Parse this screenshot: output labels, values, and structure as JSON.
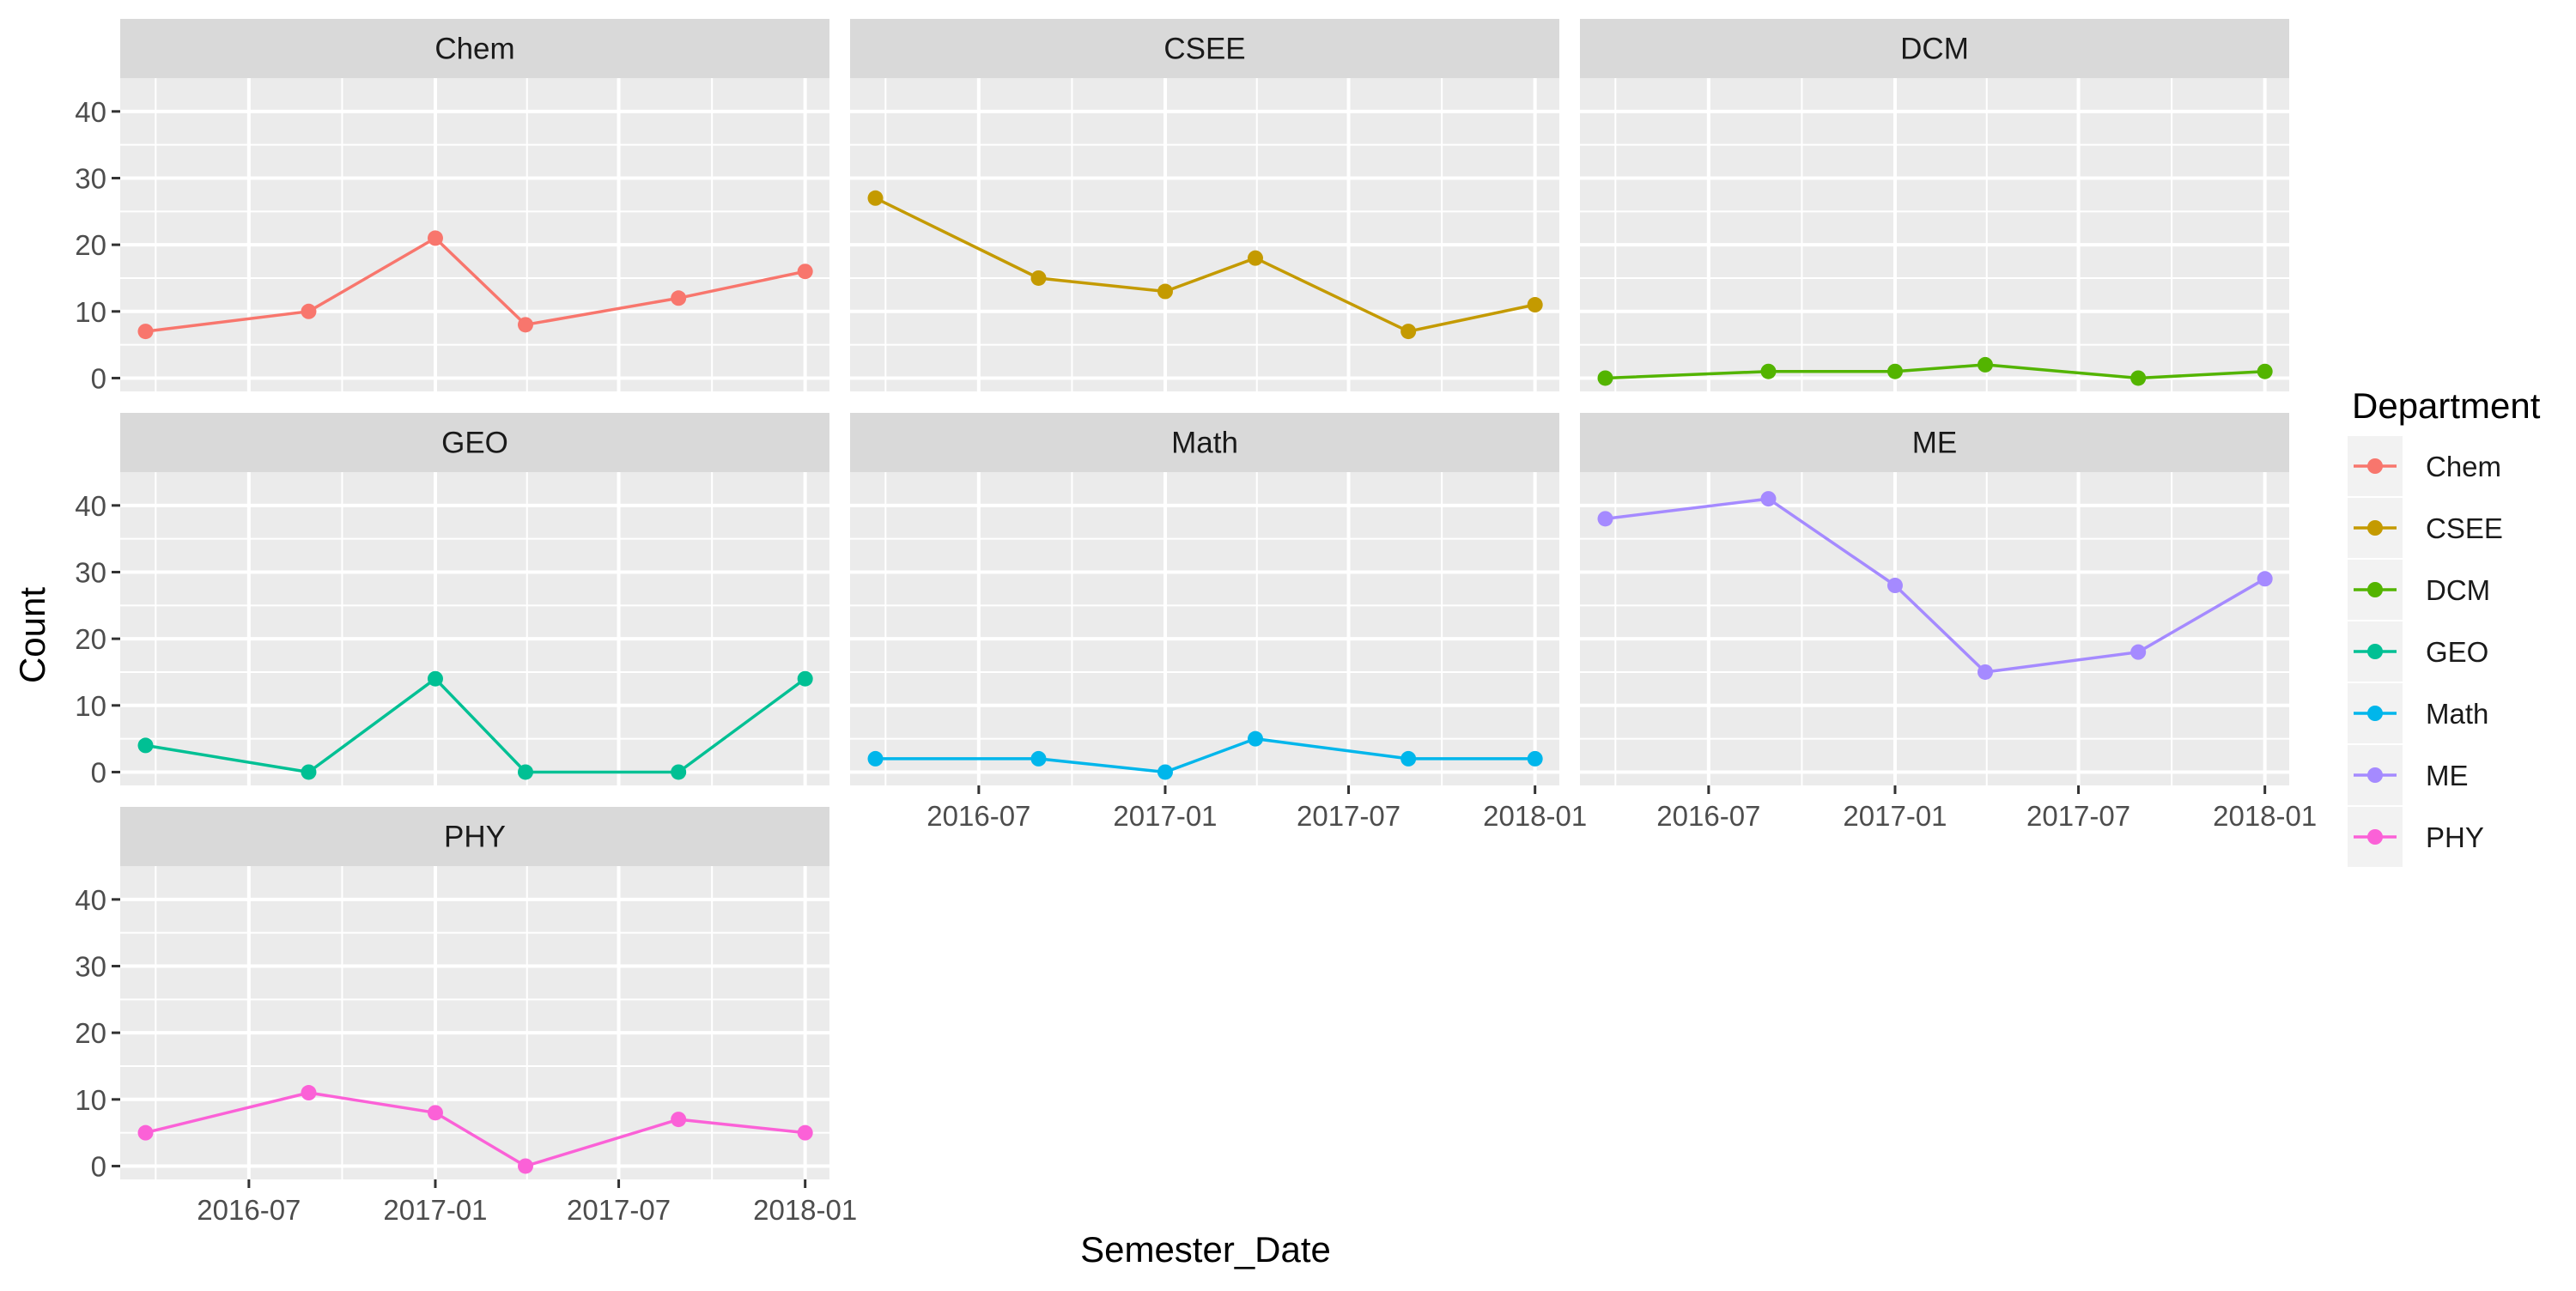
{
  "chart_data": {
    "type": "line",
    "xlabel": "Semester_Date",
    "ylabel": "Count",
    "ylim": [
      -2,
      45
    ],
    "y_ticks": [
      0,
      10,
      20,
      30,
      40
    ],
    "x_ticks": [
      "2016-07",
      "2017-01",
      "2017-07",
      "2018-01"
    ],
    "x_ticks_dates": [
      "2016-07-01",
      "2017-01-01",
      "2017-07-01",
      "2018-01-01"
    ],
    "xlim": [
      "2016-02-25",
      "2018-01-25"
    ],
    "x": [
      "2016-03-21",
      "2016-08-29",
      "2017-01-01",
      "2017-03-31",
      "2017-08-29",
      "2018-01-01"
    ],
    "grid": true,
    "legend": {
      "title": "Department",
      "position": "right"
    },
    "series": [
      {
        "name": "Chem",
        "color": "#F8766D",
        "values": [
          7,
          10,
          21,
          8,
          12,
          16
        ]
      },
      {
        "name": "CSEE",
        "color": "#C49A00",
        "values": [
          27,
          15,
          13,
          18,
          7,
          11
        ]
      },
      {
        "name": "DCM",
        "color": "#53B400",
        "values": [
          0,
          1,
          1,
          2,
          0,
          1
        ]
      },
      {
        "name": "GEO",
        "color": "#00C094",
        "values": [
          4,
          0,
          14,
          0,
          0,
          14
        ]
      },
      {
        "name": "Math",
        "color": "#00B6EB",
        "values": [
          2,
          2,
          0,
          5,
          2,
          2
        ]
      },
      {
        "name": "ME",
        "color": "#A58AFF",
        "values": [
          38,
          41,
          28,
          15,
          18,
          29
        ]
      },
      {
        "name": "PHY",
        "color": "#FB61D7",
        "values": [
          5,
          11,
          8,
          0,
          7,
          5
        ]
      }
    ]
  }
}
